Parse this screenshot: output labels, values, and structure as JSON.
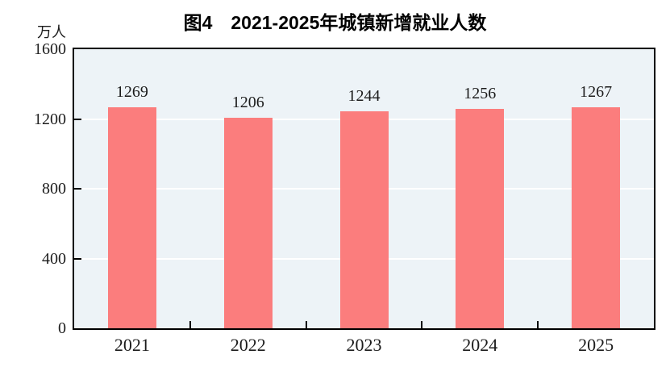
{
  "chart_data": {
    "type": "bar",
    "title": "图4　2021-2025年城镇新增就业人数",
    "unit_label": "万人",
    "categories": [
      "2021",
      "2022",
      "2023",
      "2024",
      "2025"
    ],
    "values": [
      1269,
      1206,
      1244,
      1256,
      1267
    ],
    "value_labels": [
      "1269",
      "1206",
      "1244",
      "1256",
      "1267"
    ],
    "xlabel": "",
    "ylabel": "万人",
    "ylim": [
      0,
      1600
    ],
    "yticks": [
      0,
      400,
      800,
      1200,
      1600
    ],
    "ytick_labels": [
      "0",
      "400",
      "800",
      "1200",
      "1600"
    ],
    "grid": "horizontal",
    "legend_position": "none",
    "colors": {
      "bar": "#fb7d7d",
      "plot_background": "#edf3f7",
      "gridline": "#ffffff",
      "axis": "#000000",
      "text": "#1c1c1c",
      "title_text": "#000000",
      "page_background": "#ffffff"
    }
  }
}
